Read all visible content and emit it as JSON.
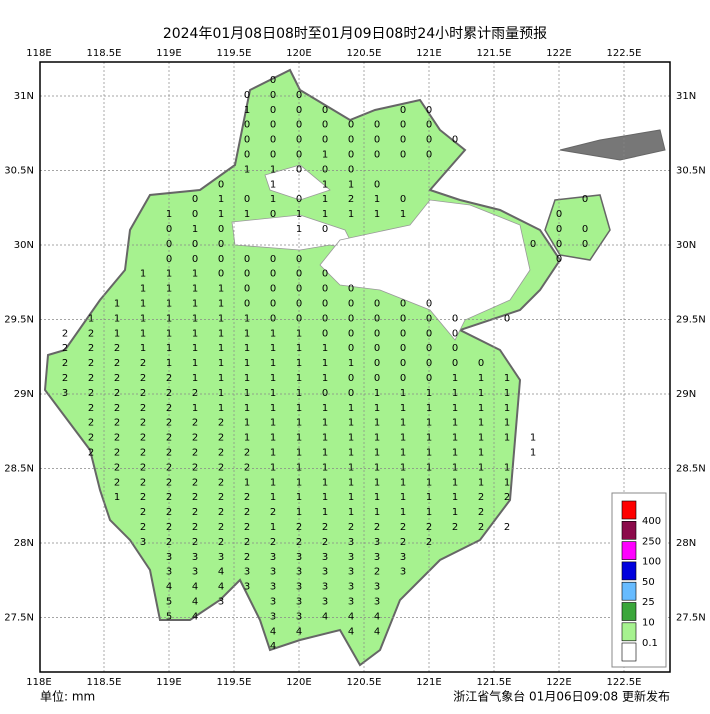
{
  "header": {
    "title": "2024年01月08日08时至01月09日08时24小时累计雨量预报"
  },
  "axes": {
    "lon_labels": [
      "118E",
      "118.5E",
      "119E",
      "119.5E",
      "120E",
      "120.5E",
      "121E",
      "121.5E",
      "122E",
      "122.5E"
    ],
    "lat_labels": [
      "31N",
      "30.5N",
      "30N",
      "29.5N",
      "29N",
      "28.5N",
      "28N",
      "27.5N"
    ]
  },
  "grid": [
    [
      null,
      null,
      null,
      null,
      null,
      null,
      null,
      null,
      0
    ],
    [
      null,
      null,
      null,
      null,
      null,
      null,
      null,
      0,
      0,
      0
    ],
    [
      null,
      null,
      null,
      null,
      null,
      null,
      null,
      1,
      0,
      0,
      0,
      null,
      null,
      0,
      0
    ],
    [
      null,
      null,
      null,
      null,
      null,
      null,
      null,
      0,
      0,
      0,
      0,
      0,
      0,
      0,
      0
    ],
    [
      null,
      null,
      null,
      null,
      null,
      null,
      null,
      0,
      0,
      0,
      0,
      0,
      0,
      0,
      0,
      0
    ],
    [
      null,
      null,
      null,
      null,
      null,
      null,
      null,
      0,
      0,
      0,
      1,
      0,
      0,
      0,
      0
    ],
    [
      null,
      null,
      null,
      null,
      null,
      null,
      null,
      1,
      1,
      0,
      0,
      0
    ],
    [
      null,
      null,
      null,
      null,
      null,
      null,
      0,
      null,
      1,
      null,
      1,
      1,
      0
    ],
    [
      null,
      null,
      null,
      null,
      null,
      0,
      1,
      0,
      1,
      0,
      1,
      2,
      1,
      0,
      null,
      null,
      null,
      null,
      null,
      null,
      0
    ],
    [
      null,
      null,
      null,
      null,
      1,
      0,
      1,
      1,
      0,
      1,
      1,
      1,
      1,
      1,
      null,
      null,
      null,
      null,
      null,
      0
    ],
    [
      null,
      null,
      null,
      null,
      0,
      1,
      0,
      null,
      null,
      1,
      0,
      null,
      null,
      null,
      null,
      null,
      null,
      null,
      null,
      0,
      0
    ],
    [
      null,
      null,
      null,
      null,
      0,
      0,
      0,
      null,
      null,
      null,
      null,
      null,
      null,
      null,
      null,
      null,
      null,
      null,
      0,
      0,
      0
    ],
    [
      null,
      null,
      null,
      null,
      0,
      0,
      0,
      0,
      0,
      0,
      null,
      null,
      null,
      null,
      null,
      null,
      null,
      null,
      null,
      0
    ],
    [
      null,
      null,
      null,
      1,
      1,
      1,
      0,
      0,
      0,
      0,
      0
    ],
    [
      null,
      null,
      null,
      1,
      1,
      1,
      1,
      0,
      0,
      0,
      0,
      0
    ],
    [
      null,
      null,
      1,
      1,
      1,
      1,
      1,
      0,
      0,
      0,
      0,
      0,
      0,
      0,
      0
    ],
    [
      null,
      1,
      1,
      1,
      1,
      1,
      1,
      1,
      0,
      0,
      0,
      0,
      0,
      0,
      0,
      0,
      null,
      0
    ],
    [
      2,
      2,
      1,
      1,
      1,
      1,
      1,
      1,
      1,
      1,
      0,
      0,
      0,
      0,
      0,
      0
    ],
    [
      2,
      2,
      2,
      1,
      1,
      1,
      1,
      1,
      1,
      1,
      1,
      0,
      0,
      0,
      0,
      0
    ],
    [
      2,
      2,
      2,
      2,
      1,
      1,
      1,
      1,
      1,
      1,
      1,
      1,
      0,
      0,
      0,
      0,
      0
    ],
    [
      2,
      2,
      2,
      2,
      2,
      1,
      1,
      1,
      1,
      1,
      1,
      0,
      0,
      0,
      0,
      1,
      1,
      1
    ],
    [
      3,
      2,
      2,
      2,
      2,
      2,
      1,
      1,
      1,
      1,
      0,
      0,
      1,
      1,
      1,
      1,
      1,
      1
    ],
    [
      null,
      2,
      2,
      2,
      2,
      1,
      1,
      1,
      1,
      1,
      1,
      1,
      1,
      1,
      1,
      1,
      1,
      1
    ],
    [
      null,
      2,
      2,
      2,
      2,
      2,
      2,
      1,
      1,
      1,
      1,
      1,
      1,
      1,
      1,
      1,
      1,
      1
    ],
    [
      null,
      2,
      2,
      2,
      2,
      2,
      2,
      1,
      1,
      1,
      1,
      1,
      1,
      1,
      1,
      1,
      1,
      1,
      1
    ],
    [
      null,
      2,
      2,
      2,
      2,
      2,
      2,
      2,
      1,
      1,
      1,
      1,
      1,
      1,
      1,
      1,
      1,
      null,
      1
    ],
    [
      null,
      null,
      2,
      2,
      2,
      2,
      2,
      2,
      1,
      1,
      1,
      1,
      1,
      1,
      1,
      1,
      1,
      1
    ],
    [
      null,
      null,
      2,
      2,
      2,
      2,
      2,
      1,
      1,
      1,
      1,
      1,
      1,
      1,
      1,
      1,
      1,
      1
    ],
    [
      null,
      null,
      1,
      2,
      2,
      2,
      2,
      2,
      1,
      1,
      1,
      1,
      1,
      1,
      1,
      1,
      2,
      2
    ],
    [
      null,
      null,
      null,
      2,
      2,
      2,
      2,
      2,
      2,
      1,
      1,
      1,
      1,
      1,
      1,
      1,
      2
    ],
    [
      null,
      null,
      null,
      2,
      2,
      2,
      2,
      2,
      1,
      2,
      2,
      2,
      2,
      2,
      2,
      2,
      2,
      2
    ],
    [
      null,
      null,
      null,
      3,
      2,
      2,
      2,
      2,
      2,
      2,
      2,
      3,
      3,
      2,
      2
    ],
    [
      null,
      null,
      null,
      null,
      3,
      3,
      3,
      2,
      3,
      3,
      3,
      3,
      3,
      3
    ],
    [
      null,
      null,
      null,
      null,
      3,
      3,
      4,
      3,
      3,
      3,
      3,
      3,
      2,
      3
    ],
    [
      null,
      null,
      null,
      null,
      4,
      4,
      4,
      3,
      3,
      3,
      3,
      3,
      3
    ],
    [
      null,
      null,
      null,
      null,
      5,
      4,
      3,
      null,
      3,
      3,
      3,
      3,
      3
    ],
    [
      null,
      null,
      null,
      null,
      5,
      4,
      null,
      null,
      3,
      3,
      4,
      4,
      4
    ],
    [
      null,
      null,
      null,
      null,
      null,
      null,
      null,
      null,
      4,
      4,
      null,
      4,
      4
    ],
    [
      null,
      null,
      null,
      null,
      null,
      null,
      null,
      null,
      4
    ]
  ],
  "legend": [
    {
      "label": "400",
      "color": "#ff0000"
    },
    {
      "label": "250",
      "color": "#8b0a4a"
    },
    {
      "label": "100",
      "color": "#ff00ff"
    },
    {
      "label": "50",
      "color": "#0000dd"
    },
    {
      "label": "25",
      "color": "#66bbff"
    },
    {
      "label": "10",
      "color": "#3aa63a"
    },
    {
      "label": "0.1",
      "color": "#a6f28f"
    }
  ],
  "footer": {
    "unit": "单位: mm",
    "source": "浙江省气象台 01月06日09:08 更新发布"
  }
}
